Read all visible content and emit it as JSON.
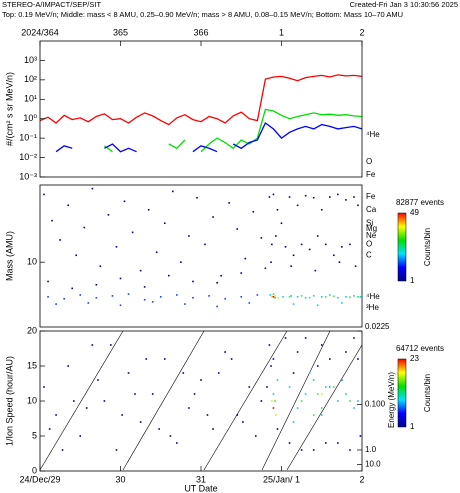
{
  "header": {
    "title": "STEREO-A/IMPACT/SEP/SIT",
    "created": "Created-Fri Jan  3 10:30:56 2025",
    "subtitle": "Top: 0.19 MeV/n; Middle: mass < 8 AMU, 0.25–0.90 MeV/n; mass > 8 AMU, 0.08–0.15 MeV/n; Bottom: Mass 10–70 AMU"
  },
  "chart_data": [
    {
      "type": "line",
      "ylabel": "#/(cm² s sr MeV/n)",
      "log_y": true,
      "xlim": [
        0,
        4
      ],
      "ylim": [
        0.001,
        10000
      ],
      "xticks": [
        {
          "value": 0,
          "label": "2024/364"
        },
        {
          "value": 1,
          "label": "365"
        },
        {
          "value": 2,
          "label": "366"
        },
        {
          "value": 3,
          "label": "1"
        },
        {
          "value": 4,
          "label": "2"
        }
      ],
      "yticks": [
        {
          "value": 0.001,
          "label": "10⁻³"
        },
        {
          "value": 0.01,
          "label": "10⁻²"
        },
        {
          "value": 0.1,
          "label": "10⁻¹"
        },
        {
          "value": 1,
          "label": "10⁰"
        },
        {
          "value": 10,
          "label": "10¹"
        },
        {
          "value": 100,
          "label": "10²"
        },
        {
          "value": 1000,
          "label": "10³"
        }
      ],
      "x": [
        0,
        0.1,
        0.2,
        0.3,
        0.4,
        0.5,
        0.6,
        0.7,
        0.8,
        0.9,
        1,
        1.1,
        1.2,
        1.3,
        1.4,
        1.5,
        1.6,
        1.7,
        1.8,
        1.9,
        2,
        2.1,
        2.2,
        2.3,
        2.4,
        2.5,
        2.6,
        2.7,
        2.8,
        2.9,
        3,
        3.1,
        3.2,
        3.3,
        3.4,
        3.5,
        3.6,
        3.7,
        3.8,
        3.9,
        4
      ],
      "series": [
        {
          "name": "⁴He",
          "color": "#ff0000",
          "values": [
            0.8,
            1.2,
            0.6,
            1.5,
            0.9,
            1.1,
            0.7,
            1.3,
            1.8,
            0.9,
            1.0,
            0.6,
            1.2,
            2.0,
            1.4,
            0.8,
            0.5,
            1.1,
            1.6,
            0.9,
            0.7,
            1.3,
            1.0,
            0.6,
            1.4,
            2.2,
            1.0,
            0.8,
            110,
            140,
            150,
            120,
            90,
            130,
            150,
            170,
            140,
            180,
            160,
            170,
            150
          ]
        },
        {
          "name": "O",
          "color": "#00e000",
          "values": [
            null,
            null,
            null,
            null,
            null,
            0.03,
            null,
            null,
            0.04,
            0.02,
            null,
            null,
            null,
            null,
            null,
            null,
            0.05,
            0.03,
            0.08,
            null,
            0.02,
            0.05,
            0.1,
            0.06,
            0.03,
            0.08,
            0.05,
            0.1,
            3,
            2.5,
            1.5,
            1.0,
            1.3,
            1.6,
            2.0,
            1.6,
            1.7,
            1.5,
            1.6,
            1.4,
            1.3
          ]
        },
        {
          "name": "Fe",
          "color": "#0000ff",
          "values": [
            0.05,
            null,
            0.02,
            0.04,
            0.03,
            null,
            0.02,
            null,
            0.03,
            0.05,
            0.02,
            0.03,
            0.02,
            null,
            null,
            0.03,
            null,
            null,
            null,
            0.02,
            0.04,
            0.03,
            0.02,
            null,
            0.05,
            0.03,
            0.06,
            0.08,
            0.6,
            0.3,
            0.1,
            0.2,
            0.3,
            0.4,
            0.3,
            0.5,
            0.4,
            0.3,
            0.35,
            0.4,
            0.3
          ]
        }
      ]
    },
    {
      "type": "scatter",
      "ylabel": "Mass (AMU)",
      "log_y": true,
      "xlim": [
        0,
        4
      ],
      "ylim": [
        1.8,
        77
      ],
      "yticks": [
        10
      ],
      "annotations": [
        {
          "text": "Fe",
          "mass": 56
        },
        {
          "text": "Ca",
          "mass": 40
        },
        {
          "text": "Si",
          "mass": 28
        },
        {
          "text": "Mg",
          "mass": 24
        },
        {
          "text": "Ne",
          "mass": 20
        },
        {
          "text": "O",
          "mass": 16
        },
        {
          "text": "C",
          "mass": 12
        },
        {
          "text": "⁴He",
          "mass": 4
        },
        {
          "text": "³He",
          "mass": 3
        }
      ],
      "colorbar": {
        "title": "82877 events",
        "max": 49,
        "min": 1,
        "label": "Counts/bin"
      },
      "series": [
        {
          "color": "#00008b",
          "x": [
            0.05,
            0.15,
            0.25,
            0.35,
            0.45,
            0.55,
            0.65,
            0.75,
            0.85,
            0.95,
            1.05,
            1.15,
            1.25,
            1.35,
            1.45,
            1.55,
            1.65,
            1.75,
            1.85,
            1.95,
            2.05,
            2.15,
            2.25,
            2.35,
            2.45,
            2.55,
            2.65,
            2.75,
            0.1,
            0.4,
            0.7,
            1.0,
            1.3,
            1.6,
            1.9,
            2.2,
            2.5,
            2.8
          ],
          "values": [
            60,
            30,
            18,
            45,
            12,
            25,
            70,
            9,
            35,
            15,
            50,
            22,
            8,
            40,
            13,
            28,
            65,
            10,
            20,
            55,
            16,
            33,
            7,
            48,
            24,
            11,
            38,
            19,
            6,
            5,
            5.5,
            6.5,
            5.2,
            7,
            6,
            5.8,
            7.5,
            8.5
          ]
        },
        {
          "color": "#1e3cff",
          "x": [
            0.1,
            0.3,
            0.5,
            0.7,
            0.9,
            1.1,
            1.3,
            1.5,
            1.7,
            1.9,
            2.1,
            2.3,
            2.5,
            2.7,
            0.2,
            0.6,
            1.0,
            1.4,
            1.8,
            2.2,
            2.6
          ],
          "values": [
            4.0,
            3.8,
            4.2,
            3.9,
            4.1,
            4.3,
            3.7,
            4.0,
            4.2,
            3.9,
            4.1,
            3.8,
            4.0,
            4.2,
            3.3,
            3.4,
            3.2,
            3.5,
            3.3,
            3.1,
            3.4
          ]
        },
        {
          "color": "#00008b",
          "x": [
            2.85,
            2.9,
            2.95,
            3.0,
            3.1,
            3.2,
            3.3,
            3.4,
            3.5,
            3.6,
            3.7,
            3.8,
            3.9,
            3.95,
            2.88,
            2.93,
            3.05,
            3.15,
            3.25,
            3.35,
            3.45,
            3.55,
            3.65,
            3.75,
            3.85,
            2.87,
            3.12,
            3.42,
            3.72,
            3.92
          ],
          "values": [
            56,
            60,
            40,
            28,
            56,
            45,
            58,
            55,
            40,
            56,
            60,
            52,
            56,
            45,
            16,
            20,
            15,
            12,
            16,
            14,
            20,
            16,
            12,
            15,
            16,
            10,
            9,
            8,
            10,
            9
          ]
        },
        {
          "color": "#00d0ff",
          "x": [
            2.86,
            2.92,
            3.02,
            3.12,
            3.2,
            3.3,
            3.4,
            3.5,
            3.6,
            3.7,
            3.8,
            3.9,
            3.98,
            3.15,
            3.45,
            3.75
          ],
          "values": [
            4.2,
            3.9,
            4.0,
            4.1,
            4.0,
            3.9,
            4.1,
            4.0,
            4.2,
            3.9,
            4.0,
            4.1,
            4.0,
            3.3,
            3.2,
            3.4
          ]
        },
        {
          "color": "#40e040",
          "x": [
            3.1,
            3.25,
            3.35,
            3.55,
            3.65,
            3.85,
            3.95,
            2.9
          ],
          "values": [
            4.0,
            4.1,
            3.9,
            4.0,
            4.05,
            3.95,
            4.0,
            4.3
          ]
        },
        {
          "color": "#ffe000",
          "x": [
            2.88,
            2.92,
            2.96
          ],
          "values": [
            4.0,
            4.1,
            3.9
          ]
        },
        {
          "color": "#e00000",
          "x": [
            2.9
          ],
          "values": [
            4.0
          ]
        }
      ]
    },
    {
      "type": "scatter",
      "ylabel": "1/Ion Speed (hour/AU)",
      "xlabel": "UT Date",
      "xlim": [
        0,
        4
      ],
      "ylim": [
        0,
        20
      ],
      "xticks": [
        {
          "value": 0,
          "label": "24/Dec/29"
        },
        {
          "value": 1,
          "label": "30"
        },
        {
          "value": 2,
          "label": "31"
        },
        {
          "value": 3,
          "label": "25/Jan/ 1"
        },
        {
          "value": 4,
          "label": "2"
        }
      ],
      "yticks": [
        0,
        5,
        10,
        15,
        20
      ],
      "y2label": "Energy (MeV/n)",
      "y2scale": "inverse-square",
      "y2ticks": [
        {
          "value": 0.0225,
          "label": "0.0225"
        },
        {
          "value": 0.1,
          "label": "0.100"
        },
        {
          "value": 1,
          "label": "1.0"
        },
        {
          "value": 10,
          "label": "10.0"
        }
      ],
      "colorbar": {
        "title": "64712 events",
        "max": 23,
        "min": 1,
        "label": "Counts/bin"
      },
      "series": [
        {
          "color": "#00008b",
          "x": [
            0.05,
            0.2,
            0.35,
            0.5,
            0.65,
            0.8,
            0.95,
            1.1,
            1.25,
            1.4,
            1.55,
            1.7,
            1.85,
            2.0,
            2.15,
            2.3,
            2.45,
            2.6,
            2.75,
            0.12,
            0.42,
            0.72,
            1.02,
            1.32,
            1.62,
            1.92,
            2.22,
            2.52,
            2.82,
            0.28,
            0.58,
            0.88,
            1.18,
            1.48,
            1.78,
            2.08,
            2.38,
            2.68
          ],
          "values": [
            12,
            8,
            15,
            5,
            18,
            10,
            3,
            14,
            7,
            11,
            16,
            4,
            9,
            13,
            6,
            17,
            8,
            12,
            10,
            6,
            10,
            13,
            8,
            16,
            5,
            11,
            14,
            7,
            12,
            3,
            9,
            18,
            11,
            6,
            14,
            8,
            16,
            5
          ]
        },
        {
          "color": "#00008b",
          "x": [
            2.85,
            2.9,
            2.95,
            3.05,
            3.1,
            3.2,
            3.3,
            3.4,
            3.5,
            3.6,
            3.7,
            3.8,
            3.9,
            3.98,
            2.87,
            3.15,
            3.45,
            3.75,
            3.95,
            3.25,
            3.55,
            3.85
          ],
          "values": [
            18,
            16,
            6,
            19,
            4,
            17,
            19,
            3,
            18,
            16,
            4,
            17,
            19,
            5,
            15,
            14,
            15,
            13,
            16,
            3,
            4,
            3
          ]
        },
        {
          "color": "#00c8ff",
          "x": [
            3.1,
            3.2,
            3.3,
            3.4,
            3.5,
            3.6,
            3.7,
            3.8,
            3.9,
            3.15,
            3.35,
            3.55,
            3.75,
            3.95,
            2.9,
            2.95
          ],
          "values": [
            12,
            9,
            11,
            13,
            8,
            12,
            10,
            11,
            9,
            7,
            14,
            12,
            13,
            10,
            11,
            13
          ]
        },
        {
          "color": "#40e040",
          "x": [
            3.25,
            3.45,
            3.5,
            3.65,
            3.85,
            3.4,
            2.92
          ],
          "values": [
            10,
            11,
            9,
            12,
            10,
            8,
            10
          ]
        },
        {
          "color": "#ffe000",
          "x": [
            2.88,
            2.93,
            3.5
          ],
          "values": [
            10,
            8,
            11
          ]
        },
        {
          "color": "#e00000",
          "x": [
            2.9
          ],
          "values": [
            9
          ]
        }
      ]
    }
  ]
}
